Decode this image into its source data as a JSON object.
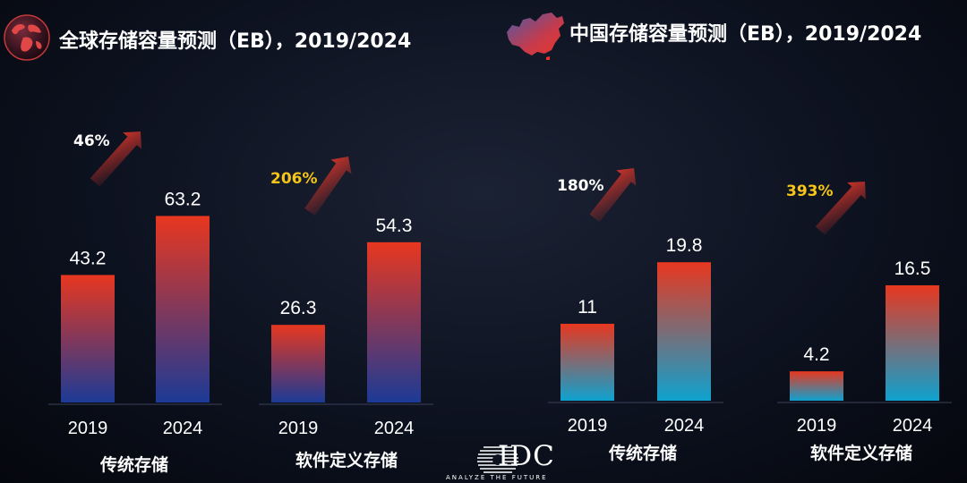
{
  "titles": {
    "left": "全球存储容量预测（EB），2019/2024",
    "right": "中国存储容量预测（EB），2019/2024"
  },
  "icons": {
    "left": "globe-icon",
    "right": "china-map-icon"
  },
  "logo": {
    "text": "IDC",
    "tagline": "ANALYZE THE FUTURE"
  },
  "colors": {
    "bar_top": "#e8371f",
    "bar_bottom_global": "#1c3a96",
    "bar_bottom_china": "#0ea2cf",
    "highlight_pct": "#f5c518",
    "normal_pct": "#ffffff"
  },
  "chart_data": [
    {
      "type": "bar",
      "title": "全球存储容量预测（EB），2019/2024",
      "groups": [
        {
          "label": "传统存储",
          "categories": [
            "2019",
            "2024"
          ],
          "values": [
            43.2,
            63.2
          ],
          "growth": "46%",
          "growth_highlight": false
        },
        {
          "label": "软件定义存储",
          "categories": [
            "2019",
            "2024"
          ],
          "values": [
            26.3,
            54.3
          ],
          "growth": "206%",
          "growth_highlight": true
        }
      ]
    },
    {
      "type": "bar",
      "title": "中国存储容量预测（EB），2019/2024",
      "groups": [
        {
          "label": "传统存储",
          "categories": [
            "2019",
            "2024"
          ],
          "values": [
            11,
            19.8
          ],
          "growth": "180%",
          "growth_highlight": false
        },
        {
          "label": "软件定义存储",
          "categories": [
            "2019",
            "2024"
          ],
          "values": [
            4.2,
            16.5
          ],
          "growth": "393%",
          "growth_highlight": true
        }
      ]
    }
  ]
}
